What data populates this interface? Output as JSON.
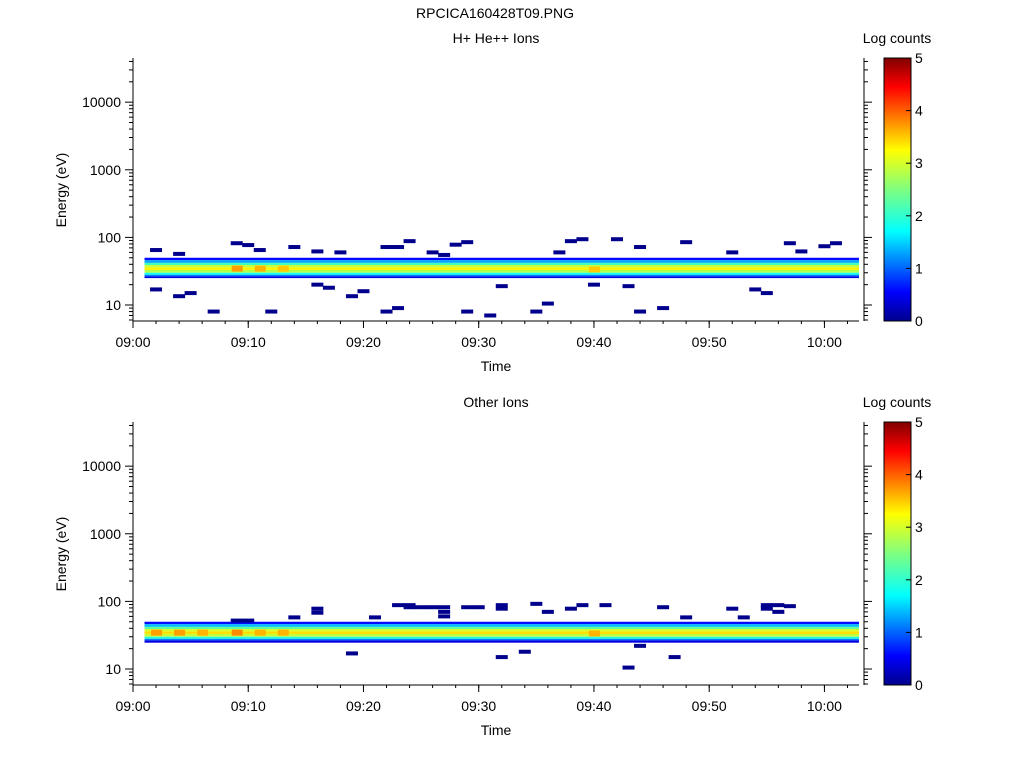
{
  "title": "RPCICA160428T09.PNG",
  "colors": {
    "background": "#ffffff",
    "axes": "#000000",
    "event_dark": "#00008c"
  },
  "chart_data": [
    {
      "type": "heatmap",
      "title": "H+ He++ Ions",
      "xlabel": "Time",
      "ylabel": "Energy (eV)",
      "yscale": "log",
      "xlim": [
        "09:00",
        "10:03"
      ],
      "ylim": [
        5.8,
        45000
      ],
      "xticks": [
        "09:00",
        "09:10",
        "09:20",
        "09:30",
        "09:40",
        "09:50",
        "10:00"
      ],
      "yticks": [
        10,
        100,
        1000,
        10000
      ],
      "ytick_labels": [
        "10",
        "100",
        "1000",
        "10000"
      ],
      "colorbar": {
        "label": "Log counts",
        "min": 0,
        "max": 5,
        "ticks": [
          "0",
          "1",
          "2",
          "3",
          "4",
          "5"
        ]
      },
      "band": {
        "x_start": "09:01",
        "x_end": "10:03",
        "levels": [
          {
            "e_low": 46,
            "e_high": 50,
            "value": 0.6
          },
          {
            "e_low": 42,
            "e_high": 46,
            "value": 1.3
          },
          {
            "e_low": 39,
            "e_high": 42,
            "value": 2.1
          },
          {
            "e_low": 36,
            "e_high": 39,
            "value": 2.9
          },
          {
            "e_low": 33,
            "e_high": 36,
            "value": 3.3
          },
          {
            "e_low": 30,
            "e_high": 33,
            "value": 2.8
          },
          {
            "e_low": 28,
            "e_high": 30,
            "value": 1.8
          },
          {
            "e_low": 26.5,
            "e_high": 28,
            "value": 1.1
          },
          {
            "e_low": 25,
            "e_high": 26.5,
            "value": 0.4
          }
        ],
        "hot_spots": [
          {
            "t": "09:09",
            "e": 34.5,
            "value": 3.7
          },
          {
            "t": "09:11",
            "e": 34.5,
            "value": 3.6
          },
          {
            "t": "09:13",
            "e": 34.5,
            "value": 3.5
          },
          {
            "t": "09:40",
            "e": 33.5,
            "value": 3.5
          }
        ]
      },
      "events": [
        [
          "09:02",
          65
        ],
        [
          "09:02",
          17
        ],
        [
          "09:04",
          13.5
        ],
        [
          "09:04",
          57
        ],
        [
          "09:05",
          15
        ],
        [
          "09:07",
          8
        ],
        [
          "09:09",
          82
        ],
        [
          "09:10",
          77
        ],
        [
          "09:11",
          65
        ],
        [
          "09:12",
          8
        ],
        [
          "09:14",
          72
        ],
        [
          "09:16",
          62
        ],
        [
          "09:16",
          20
        ],
        [
          "09:17",
          18
        ],
        [
          "09:18",
          60
        ],
        [
          "09:19",
          13.5
        ],
        [
          "09:20",
          16
        ],
        [
          "09:22",
          72
        ],
        [
          "09:23",
          72
        ],
        [
          "09:22",
          8
        ],
        [
          "09:23",
          9
        ],
        [
          "09:24",
          88
        ],
        [
          "09:26",
          60
        ],
        [
          "09:27",
          55
        ],
        [
          "09:28",
          78
        ],
        [
          "09:29",
          8
        ],
        [
          "09:29",
          85
        ],
        [
          "09:31",
          7
        ],
        [
          "09:32",
          19
        ],
        [
          "09:35",
          8
        ],
        [
          "09:36",
          10.5
        ],
        [
          "09:37",
          60
        ],
        [
          "09:38",
          88
        ],
        [
          "09:39",
          94
        ],
        [
          "09:40",
          20
        ],
        [
          "09:42",
          94
        ],
        [
          "09:43",
          19
        ],
        [
          "09:44",
          8
        ],
        [
          "09:44",
          72
        ],
        [
          "09:46",
          9
        ],
        [
          "09:48",
          85
        ],
        [
          "09:52",
          60
        ],
        [
          "09:54",
          17
        ],
        [
          "09:55",
          15
        ],
        [
          "09:57",
          82
        ],
        [
          "09:58",
          62
        ],
        [
          "10:00",
          74
        ],
        [
          "10:01",
          82
        ]
      ]
    },
    {
      "type": "heatmap",
      "title": "Other Ions",
      "xlabel": "Time",
      "ylabel": "Energy (eV)",
      "yscale": "log",
      "xlim": [
        "09:00",
        "10:03"
      ],
      "ylim": [
        5.8,
        45000
      ],
      "xticks": [
        "09:00",
        "09:10",
        "09:20",
        "09:30",
        "09:40",
        "09:50",
        "10:00"
      ],
      "yticks": [
        10,
        100,
        1000,
        10000
      ],
      "ytick_labels": [
        "10",
        "100",
        "1000",
        "10000"
      ],
      "colorbar": {
        "label": "Log counts",
        "min": 0,
        "max": 5,
        "ticks": [
          "0",
          "1",
          "2",
          "3",
          "4",
          "5"
        ]
      },
      "band": {
        "x_start": "09:01",
        "x_end": "10:03",
        "levels": [
          {
            "e_low": 46,
            "e_high": 50,
            "value": 0.6
          },
          {
            "e_low": 42,
            "e_high": 46,
            "value": 1.4
          },
          {
            "e_low": 39,
            "e_high": 42,
            "value": 2.3
          },
          {
            "e_low": 36,
            "e_high": 39,
            "value": 3.0
          },
          {
            "e_low": 33,
            "e_high": 36,
            "value": 3.4
          },
          {
            "e_low": 30,
            "e_high": 33,
            "value": 2.9
          },
          {
            "e_low": 28,
            "e_high": 30,
            "value": 1.9
          },
          {
            "e_low": 26.5,
            "e_high": 28,
            "value": 1.1
          },
          {
            "e_low": 24.5,
            "e_high": 26.5,
            "value": 0.4
          }
        ],
        "hot_spots": [
          {
            "t": "09:02",
            "e": 34.5,
            "value": 3.7
          },
          {
            "t": "09:04",
            "e": 34.5,
            "value": 3.7
          },
          {
            "t": "09:06",
            "e": 34.5,
            "value": 3.6
          },
          {
            "t": "09:09",
            "e": 34.5,
            "value": 3.8
          },
          {
            "t": "09:11",
            "e": 34.5,
            "value": 3.6
          },
          {
            "t": "09:13",
            "e": 34.5,
            "value": 3.6
          },
          {
            "t": "09:40",
            "e": 33.5,
            "value": 3.6
          }
        ]
      },
      "events": [
        [
          "09:09",
          52
        ],
        [
          "09:10",
          52
        ],
        [
          "09:14",
          58
        ],
        [
          "09:16",
          78
        ],
        [
          "09:16",
          68
        ],
        [
          "09:19",
          17
        ],
        [
          "09:21",
          58
        ],
        [
          "09:23",
          88
        ],
        [
          "09:24",
          88
        ],
        [
          "09:24",
          82
        ],
        [
          "09:25",
          82
        ],
        [
          "09:26",
          82
        ],
        [
          "09:27",
          82
        ],
        [
          "09:27",
          70
        ],
        [
          "09:27",
          60
        ],
        [
          "09:29",
          82
        ],
        [
          "09:30",
          82
        ],
        [
          "09:32",
          88
        ],
        [
          "09:32",
          78
        ],
        [
          "09:32",
          15
        ],
        [
          "09:34",
          18
        ],
        [
          "09:35",
          92
        ],
        [
          "09:36",
          70
        ],
        [
          "09:38",
          78
        ],
        [
          "09:39",
          88
        ],
        [
          "09:41",
          88
        ],
        [
          "09:43",
          10.5
        ],
        [
          "09:44",
          22
        ],
        [
          "09:46",
          82
        ],
        [
          "09:47",
          15
        ],
        [
          "09:48",
          58
        ],
        [
          "09:52",
          78
        ],
        [
          "09:53",
          58
        ],
        [
          "09:55",
          88
        ],
        [
          "09:55",
          78
        ],
        [
          "09:56",
          88
        ],
        [
          "09:56",
          70
        ],
        [
          "09:57",
          85
        ]
      ]
    }
  ]
}
